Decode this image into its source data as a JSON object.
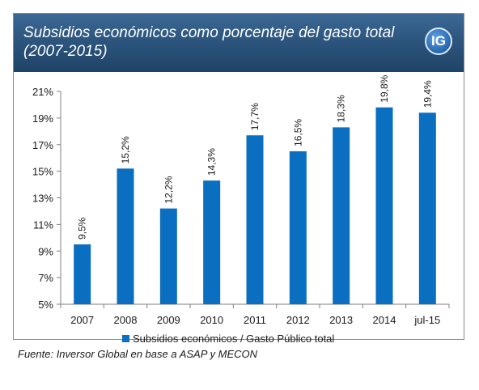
{
  "header": {
    "title": "Subsidios económicos como porcentaje del gasto total\n(2007-2015)",
    "logo_text": "IG"
  },
  "chart_data": {
    "type": "bar",
    "categories": [
      "2007",
      "2008",
      "2009",
      "2010",
      "2011",
      "2012",
      "2013",
      "2014",
      "jul-15"
    ],
    "series": [
      {
        "name": "Subsidios económicos / Gasto Público total",
        "values": [
          9.5,
          15.2,
          12.2,
          14.3,
          17.7,
          16.5,
          18.3,
          19.8,
          19.4
        ],
        "labels": [
          "9,5%",
          "15,2%",
          "12,2%",
          "14,3%",
          "17,7%",
          "16,5%",
          "18,3%",
          "19,8%",
          "19,4%"
        ],
        "color": "#0b6fc1"
      }
    ],
    "ylim": [
      5,
      21
    ],
    "yticks": [
      5,
      7,
      9,
      11,
      13,
      15,
      17,
      19,
      21
    ],
    "ytick_labels": [
      "5%",
      "7%",
      "9%",
      "11%",
      "13%",
      "15%",
      "17%",
      "19%",
      "21%"
    ],
    "legend_position": "bottom",
    "grid": false
  },
  "source": "Fuente: Inversor Global en base a ASAP y MECON"
}
